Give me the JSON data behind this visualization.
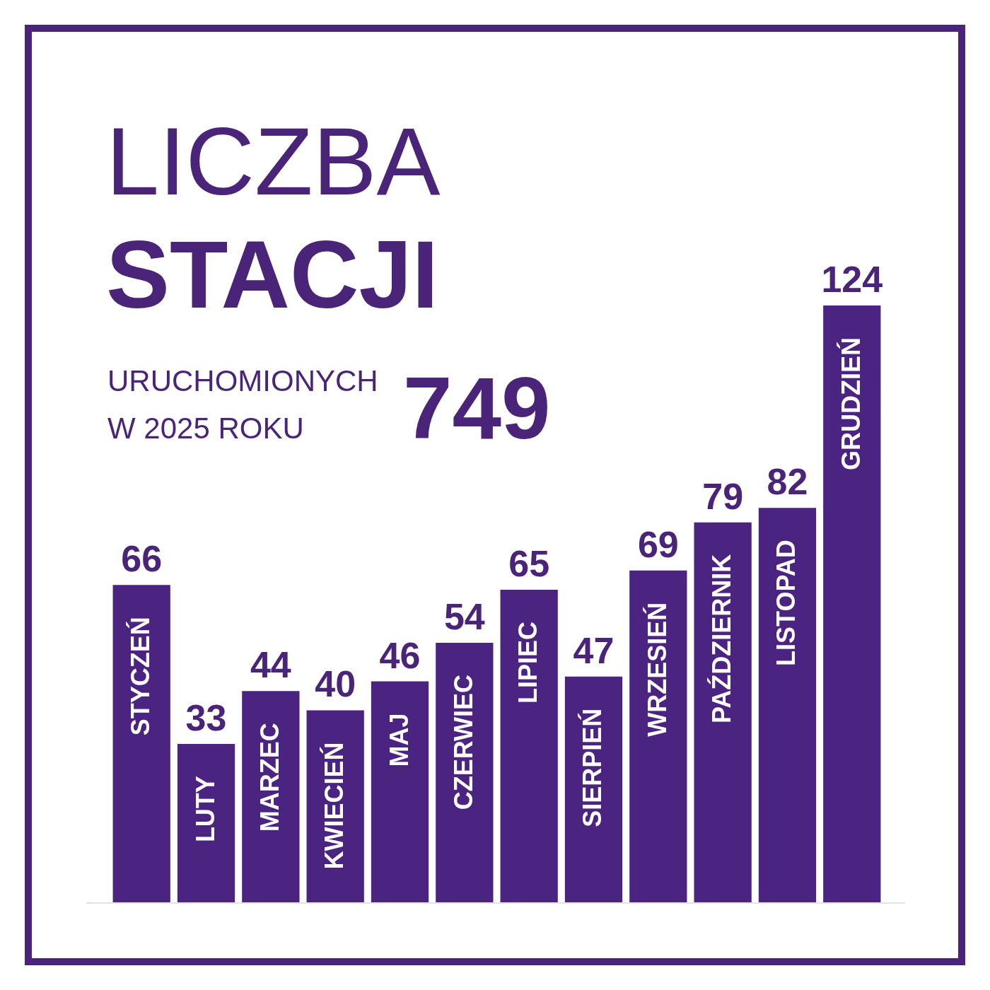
{
  "chart_data": {
    "type": "bar",
    "title": "LICZBA STACJI",
    "subtitle": "URUCHOMIONYCH W 2025 ROKU",
    "annotations": [
      "749"
    ],
    "categories": [
      "STYCZEŃ",
      "LUTY",
      "MARZEC",
      "KWIECIEŃ",
      "MAJ",
      "CZERWIEC",
      "LIPIEC",
      "SIERPIEŃ",
      "WRZESIEŃ",
      "PAŹDZIERNIK",
      "LISTOPAD",
      "GRUDZIEŃ"
    ],
    "values": [
      66,
      33,
      44,
      40,
      46,
      54,
      65,
      47,
      69,
      79,
      82,
      124
    ],
    "color": "#4a2480",
    "data_labels": true
  }
}
